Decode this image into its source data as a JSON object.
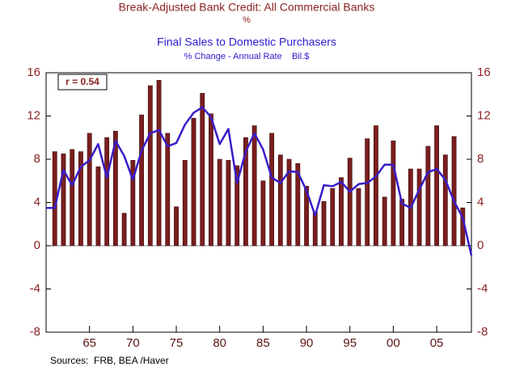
{
  "chart_data": {
    "type": "bar_line",
    "series": [
      {
        "name": "Break-Adjusted Bank Credit: All Commercial Banks",
        "units": "%",
        "type": "bar",
        "color": "#7a1e1e",
        "x": [
          1961,
          1962,
          1963,
          1964,
          1965,
          1966,
          1967,
          1968,
          1969,
          1970,
          1971,
          1972,
          1973,
          1974,
          1975,
          1976,
          1977,
          1978,
          1979,
          1980,
          1981,
          1982,
          1983,
          1984,
          1985,
          1986,
          1987,
          1988,
          1989,
          1990,
          1991,
          1992,
          1993,
          1994,
          1995,
          1996,
          1997,
          1998,
          1999,
          2000,
          2001,
          2002,
          2003,
          2004,
          2005,
          2006,
          2007,
          2008
        ],
        "values": [
          8.7,
          8.5,
          8.9,
          8.7,
          10.4,
          7.3,
          10.0,
          10.6,
          3.0,
          7.9,
          12.1,
          14.8,
          15.3,
          10.4,
          3.6,
          7.9,
          11.8,
          14.1,
          12.2,
          8.0,
          7.9,
          7.4,
          10.0,
          11.1,
          6.0,
          10.4,
          8.4,
          8.0,
          7.6,
          5.5,
          3.1,
          4.1,
          5.3,
          6.3,
          8.1,
          5.3,
          9.9,
          11.1,
          4.5,
          9.7,
          4.3,
          7.1,
          7.1,
          9.2,
          11.1,
          8.4,
          10.1,
          3.5
        ]
      },
      {
        "name": "Final Sales to Domestic Purchasers",
        "units": "% Change - Annual Rate    Bil.$",
        "type": "line",
        "color": "#3a1cc8",
        "x": [
          1960,
          1961,
          1962,
          1963,
          1964,
          1965,
          1966,
          1967,
          1968,
          1969,
          1970,
          1971,
          1972,
          1973,
          1974,
          1975,
          1976,
          1977,
          1978,
          1979,
          1980,
          1981,
          1982,
          1983,
          1984,
          1985,
          1986,
          1987,
          1988,
          1989,
          1990,
          1991,
          1992,
          1993,
          1994,
          1995,
          1996,
          1997,
          1998,
          1999,
          2000,
          2001,
          2002,
          2003,
          2004,
          2005,
          2006,
          2007,
          2008,
          2009
        ],
        "values": [
          3.5,
          3.5,
          7.0,
          5.6,
          7.3,
          7.9,
          9.4,
          6.3,
          9.7,
          8.3,
          6.1,
          8.8,
          10.4,
          10.7,
          9.2,
          9.5,
          11.2,
          12.3,
          12.8,
          11.9,
          9.4,
          10.8,
          5.8,
          8.7,
          10.4,
          8.9,
          6.3,
          5.8,
          6.9,
          6.8,
          5.1,
          2.8,
          5.6,
          5.5,
          5.9,
          5.0,
          5.7,
          5.8,
          6.4,
          7.5,
          7.5,
          3.9,
          3.5,
          5.2,
          6.8,
          7.1,
          6.1,
          4.1,
          2.6,
          -0.9
        ]
      }
    ],
    "annotation": "r = 0.54",
    "source": "Sources:  FRB, BEA /Haver",
    "xlim": [
      1960,
      2009
    ],
    "xticks": [
      {
        "value": 1965,
        "label": "65"
      },
      {
        "value": 1970,
        "label": "70"
      },
      {
        "value": 1975,
        "label": "75"
      },
      {
        "value": 1980,
        "label": "80"
      },
      {
        "value": 1985,
        "label": "85"
      },
      {
        "value": 1990,
        "label": "90"
      },
      {
        "value": 1995,
        "label": "95"
      },
      {
        "value": 2000,
        "label": "00"
      },
      {
        "value": 2005,
        "label": "05"
      }
    ],
    "ylim": [
      -8,
      16
    ],
    "yticks": [
      -8,
      -4,
      0,
      4,
      8,
      12,
      16
    ],
    "y2lim": [
      -8,
      16
    ],
    "y2ticks": [
      -8,
      -4,
      0,
      4,
      8,
      12,
      16
    ],
    "grid": false
  }
}
